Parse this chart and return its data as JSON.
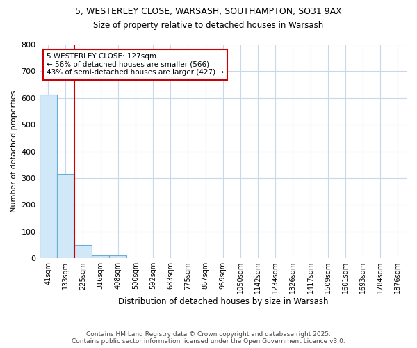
{
  "title1": "5, WESTERLEY CLOSE, WARSASH, SOUTHAMPTON, SO31 9AX",
  "title2": "Size of property relative to detached houses in Warsash",
  "xlabel": "Distribution of detached houses by size in Warsash",
  "ylabel": "Number of detached properties",
  "categories": [
    "41sqm",
    "133sqm",
    "225sqm",
    "316sqm",
    "408sqm",
    "500sqm",
    "592sqm",
    "683sqm",
    "775sqm",
    "867sqm",
    "959sqm",
    "1050sqm",
    "1142sqm",
    "1234sqm",
    "1326sqm",
    "1417sqm",
    "1509sqm",
    "1601sqm",
    "1693sqm",
    "1784sqm",
    "1876sqm"
  ],
  "values": [
    613,
    316,
    50,
    10,
    10,
    0,
    0,
    0,
    0,
    0,
    0,
    0,
    0,
    0,
    0,
    0,
    0,
    0,
    0,
    0,
    0
  ],
  "bar_color": "#d0e8f8",
  "bar_edge_color": "#6aaed6",
  "annotation_text": "5 WESTERLEY CLOSE: 127sqm\n← 56% of detached houses are smaller (566)\n43% of semi-detached houses are larger (427) →",
  "annotation_box_color": "#ffffff",
  "annotation_box_edge": "#cc0000",
  "property_line_color": "#cc0000",
  "ylim": [
    0,
    800
  ],
  "yticks": [
    0,
    100,
    200,
    300,
    400,
    500,
    600,
    700,
    800
  ],
  "footer1": "Contains HM Land Registry data © Crown copyright and database right 2025.",
  "footer2": "Contains public sector information licensed under the Open Government Licence v3.0.",
  "bg_color": "#ffffff",
  "grid_color": "#c8d8ec"
}
